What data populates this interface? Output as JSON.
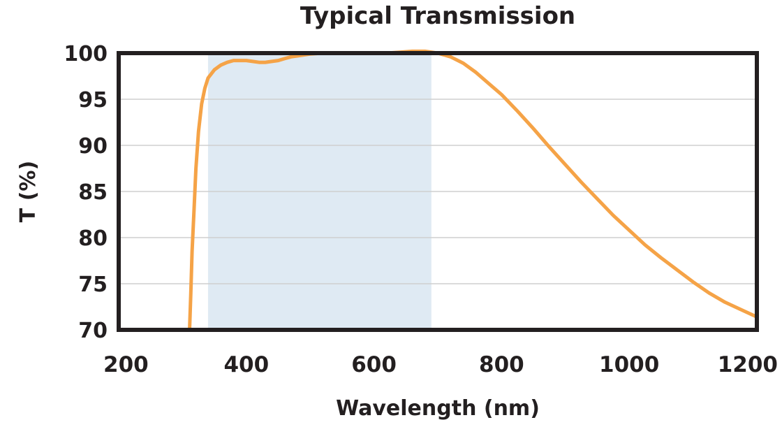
{
  "chart_data": {
    "type": "line",
    "title": "Typical Transmission",
    "xlabel": "Wavelength (nm)",
    "ylabel": "T (%)",
    "xlim": [
      200,
      1200
    ],
    "ylim": [
      70,
      100
    ],
    "x_ticks": [
      200,
      400,
      600,
      800,
      1000,
      1200
    ],
    "x_tick_labels": [
      "200",
      "400",
      "600",
      "800",
      "1000",
      "1200"
    ],
    "y_ticks": [
      70,
      75,
      80,
      85,
      90,
      95,
      100
    ],
    "y_tick_labels": [
      "70",
      "75",
      "80",
      "85",
      "90",
      "95",
      "100"
    ],
    "grid": "horizontal",
    "highlight_band": {
      "x_start": 340,
      "x_end": 690,
      "color": "#dfeaf3"
    },
    "series": [
      {
        "color": "#f5a347",
        "x": [
          311,
          313,
          315,
          318,
          321,
          325,
          330,
          335,
          340,
          350,
          360,
          370,
          380,
          390,
          400,
          410,
          420,
          430,
          440,
          450,
          460,
          470,
          480,
          500,
          520,
          540,
          560,
          580,
          600,
          620,
          640,
          660,
          680,
          700,
          720,
          740,
          760,
          780,
          800,
          825,
          850,
          875,
          900,
          925,
          950,
          975,
          1000,
          1025,
          1050,
          1075,
          1100,
          1125,
          1150,
          1175,
          1200
        ],
        "y": [
          70.0,
          74.0,
          78.5,
          83.0,
          87.5,
          91.5,
          94.5,
          96.2,
          97.3,
          98.2,
          98.7,
          99.0,
          99.2,
          99.2,
          99.2,
          99.1,
          99.0,
          99.0,
          99.1,
          99.2,
          99.4,
          99.6,
          99.7,
          99.9,
          100.0,
          100.0,
          100.0,
          100.0,
          100.0,
          100.0,
          100.1,
          100.2,
          100.2,
          100.0,
          99.6,
          98.9,
          97.9,
          96.7,
          95.5,
          93.7,
          91.8,
          89.8,
          87.9,
          86.0,
          84.2,
          82.4,
          80.8,
          79.2,
          77.8,
          76.5,
          75.2,
          74.0,
          73.0,
          72.2,
          71.4
        ]
      }
    ]
  }
}
